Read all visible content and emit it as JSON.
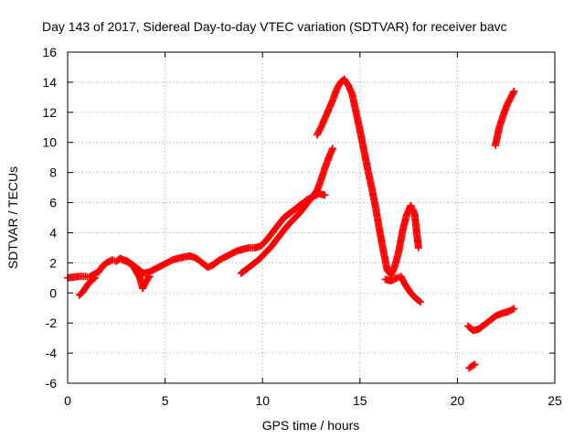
{
  "chart_data": {
    "type": "scatter",
    "title": "Day 143 of 2017, Sidereal Day-to-day VTEC variation (SDTVAR) for receiver bavc",
    "xlabel": "GPS time / hours",
    "ylabel": "SDTVAR / TECUs",
    "xlim": [
      0,
      25
    ],
    "ylim": [
      -6,
      16
    ],
    "xticks": [
      0,
      5,
      10,
      15,
      20,
      25
    ],
    "yticks": [
      -6,
      -4,
      -2,
      0,
      2,
      4,
      6,
      8,
      10,
      12,
      14,
      16
    ],
    "grid": true,
    "legend": "none",
    "marker": "+",
    "color": "#ff0000",
    "series": [
      {
        "points": [
          [
            0.0,
            1.0
          ],
          [
            0.3,
            1.05
          ],
          [
            0.6,
            1.1
          ],
          [
            0.9,
            1.1
          ],
          [
            1.1,
            1.05
          ],
          [
            1.3,
            1.2
          ],
          [
            1.6,
            1.4
          ],
          [
            1.8,
            1.8
          ],
          [
            2.0,
            2.0
          ],
          [
            2.3,
            2.2
          ],
          [
            2.5,
            2.1
          ],
          [
            2.7,
            2.3
          ],
          [
            3.0,
            2.1
          ],
          [
            3.3,
            1.9
          ],
          [
            3.6,
            1.6
          ],
          [
            3.9,
            1.3
          ],
          [
            4.2,
            1.4
          ],
          [
            4.5,
            1.6
          ],
          [
            4.8,
            1.8
          ],
          [
            5.1,
            2.0
          ],
          [
            5.4,
            2.2
          ],
          [
            5.7,
            2.3
          ],
          [
            6.0,
            2.4
          ],
          [
            6.3,
            2.45
          ],
          [
            6.6,
            2.3
          ],
          [
            6.9,
            2.0
          ],
          [
            7.2,
            1.7
          ],
          [
            7.5,
            1.9
          ],
          [
            7.8,
            2.2
          ],
          [
            8.1,
            2.4
          ],
          [
            8.4,
            2.6
          ],
          [
            8.7,
            2.8
          ],
          [
            9.0,
            2.9
          ],
          [
            9.3,
            3.0
          ],
          [
            9.6,
            3.0
          ],
          [
            9.9,
            3.1
          ],
          [
            10.2,
            3.5
          ],
          [
            10.5,
            4.0
          ],
          [
            10.8,
            4.5
          ],
          [
            11.1,
            5.0
          ],
          [
            11.4,
            5.3
          ],
          [
            11.7,
            5.6
          ],
          [
            12.0,
            5.9
          ],
          [
            12.3,
            6.2
          ],
          [
            12.6,
            6.4
          ],
          [
            12.9,
            6.6
          ],
          [
            13.2,
            6.5
          ]
        ]
      },
      {
        "points": [
          [
            0.6,
            -0.15
          ],
          [
            0.8,
            0.1
          ],
          [
            1.0,
            0.5
          ],
          [
            1.2,
            0.8
          ],
          [
            1.4,
            1.0
          ]
        ]
      },
      {
        "points": [
          [
            2.8,
            2.2
          ],
          [
            3.1,
            2.1
          ],
          [
            3.4,
            1.7
          ],
          [
            3.7,
            1.0
          ],
          [
            3.85,
            0.3
          ],
          [
            4.0,
            0.7
          ],
          [
            4.2,
            1.1
          ]
        ]
      },
      {
        "points": [
          [
            8.9,
            1.3
          ],
          [
            9.2,
            1.6
          ],
          [
            9.5,
            1.9
          ],
          [
            9.8,
            2.2
          ],
          [
            10.1,
            2.6
          ],
          [
            10.4,
            3.0
          ],
          [
            10.7,
            3.5
          ],
          [
            11.0,
            4.0
          ],
          [
            11.3,
            4.5
          ],
          [
            11.6,
            4.9
          ],
          [
            11.9,
            5.3
          ],
          [
            12.2,
            5.8
          ],
          [
            12.5,
            6.3
          ],
          [
            12.8,
            6.8
          ],
          [
            13.0,
            7.5
          ],
          [
            13.2,
            8.3
          ],
          [
            13.4,
            9.0
          ],
          [
            13.6,
            9.6
          ]
        ]
      },
      {
        "points": [
          [
            12.8,
            10.5
          ],
          [
            13.0,
            11.0
          ],
          [
            13.2,
            11.6
          ],
          [
            13.4,
            12.2
          ],
          [
            13.6,
            12.8
          ],
          [
            13.8,
            13.5
          ],
          [
            14.0,
            14.0
          ],
          [
            14.2,
            14.2
          ],
          [
            14.4,
            13.8
          ],
          [
            14.6,
            13.2
          ],
          [
            14.8,
            12.0
          ],
          [
            15.0,
            10.8
          ],
          [
            15.2,
            9.5
          ],
          [
            15.4,
            8.2
          ],
          [
            15.6,
            7.0
          ],
          [
            15.8,
            5.7
          ],
          [
            16.0,
            4.2
          ],
          [
            16.2,
            2.8
          ],
          [
            16.4,
            1.5
          ],
          [
            16.6,
            1.2
          ],
          [
            16.8,
            1.8
          ],
          [
            17.0,
            2.8
          ],
          [
            17.2,
            4.2
          ],
          [
            17.4,
            5.2
          ],
          [
            17.6,
            5.8
          ],
          [
            17.8,
            5.3
          ],
          [
            18.0,
            3.0
          ]
        ]
      },
      {
        "points": [
          [
            16.3,
            0.9
          ],
          [
            16.6,
            0.8
          ],
          [
            16.9,
            1.0
          ],
          [
            17.1,
            1.1
          ],
          [
            17.3,
            0.6
          ],
          [
            17.6,
            0.0
          ],
          [
            17.9,
            -0.4
          ],
          [
            18.1,
            -0.6
          ]
        ]
      },
      {
        "points": [
          [
            20.55,
            -2.2
          ],
          [
            20.8,
            -2.5
          ],
          [
            21.1,
            -2.4
          ],
          [
            21.4,
            -2.1
          ],
          [
            21.7,
            -1.8
          ],
          [
            22.0,
            -1.5
          ],
          [
            22.3,
            -1.35
          ],
          [
            22.6,
            -1.25
          ],
          [
            22.9,
            -1.05
          ]
        ]
      },
      {
        "points": [
          [
            20.6,
            -5.0
          ],
          [
            20.75,
            -4.85
          ],
          [
            20.9,
            -4.75
          ]
        ]
      },
      {
        "points": [
          [
            21.95,
            9.8
          ],
          [
            22.15,
            11.0
          ],
          [
            22.35,
            11.8
          ],
          [
            22.55,
            12.5
          ],
          [
            22.75,
            13.0
          ],
          [
            22.9,
            13.4
          ]
        ]
      }
    ]
  }
}
